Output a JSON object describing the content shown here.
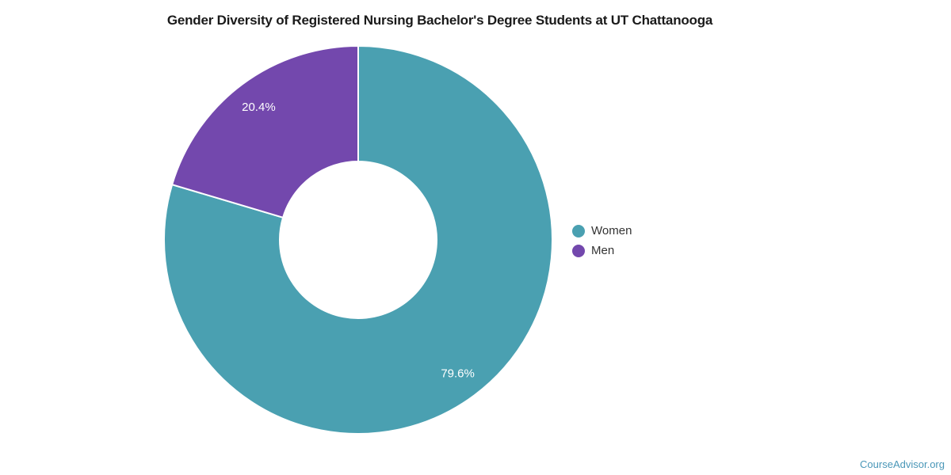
{
  "page": {
    "title": "Gender Diversity of Registered Nursing Bachelor's Degree Students at UT Chattanooga",
    "watermark": "CourseAdvisor.org"
  },
  "colors": {
    "women_slice": "#4AA0B1",
    "men_slice": "#7348AD",
    "slice_border": "#FFFFFF",
    "slice_label_text": "#FFFFFF",
    "legend_text": "#333333",
    "title_text": "#1A1A1A",
    "watermark_link": "#4A97B8"
  },
  "chart_data": {
    "type": "pie",
    "subtype": "donut",
    "title": "Gender Diversity of Registered Nursing Bachelor's Degree Students at UT Chattanooga",
    "categories": [
      "Women",
      "Men"
    ],
    "values": [
      79.6,
      20.4
    ],
    "unit": "%",
    "slices": [
      {
        "label": "Women",
        "value": 79.6,
        "display": "79.6%",
        "color": "#4AA0B1"
      },
      {
        "label": "Men",
        "value": 20.4,
        "display": "20.4%",
        "color": "#7348AD"
      }
    ],
    "start_angle_deg": 0,
    "direction": "clockwise",
    "legend_position": "right",
    "data_labels": "inside",
    "grid": false
  }
}
